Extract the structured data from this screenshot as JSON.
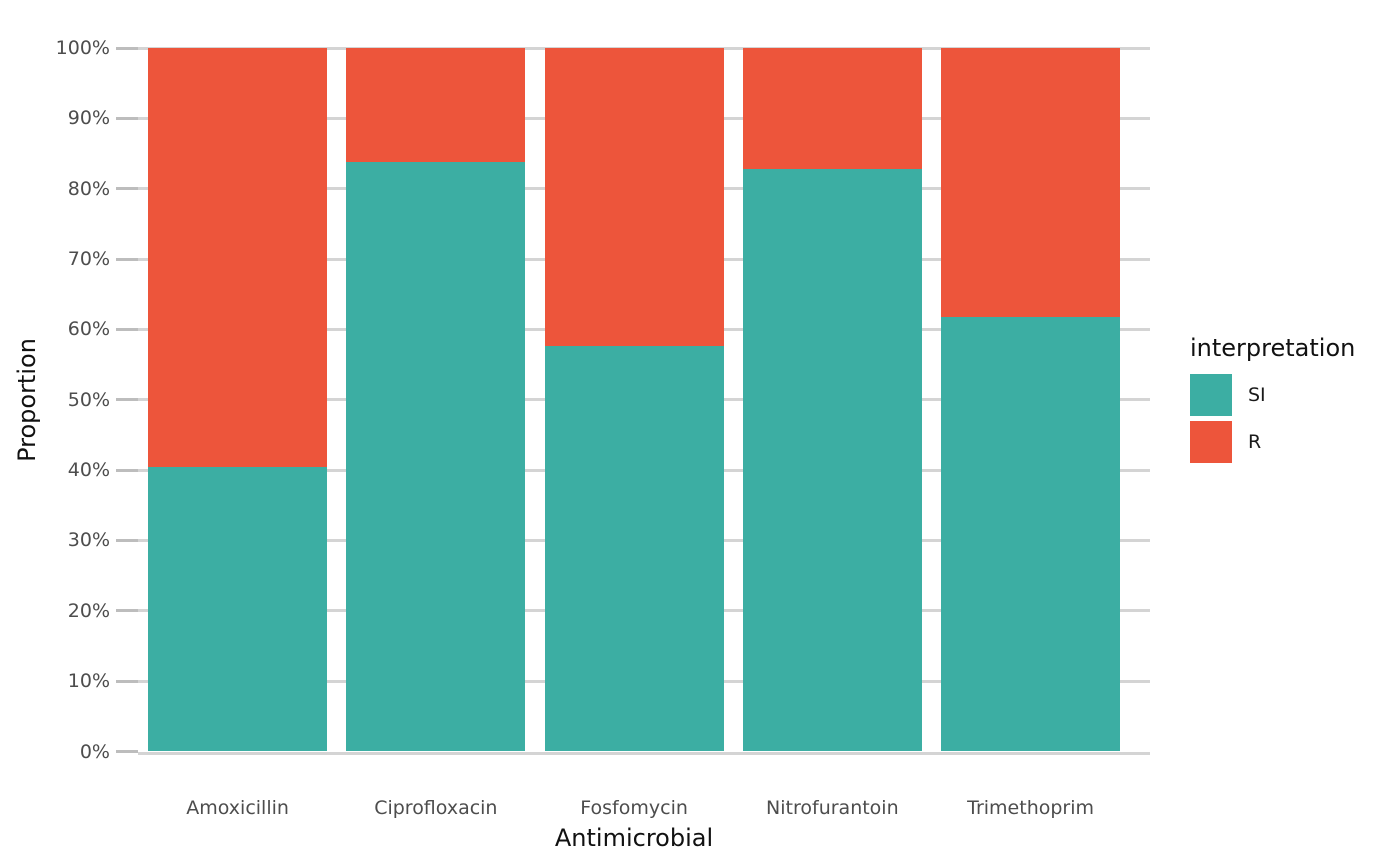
{
  "chart_data": {
    "type": "bar",
    "variant": "stacked-percent",
    "orientation": "vertical",
    "title": "",
    "xlabel": "Antimicrobial",
    "ylabel": "Proportion",
    "categories": [
      "Amoxicillin",
      "Ciprofloxacin",
      "Fosfomycin",
      "Nitrofurantoin",
      "Trimethoprim"
    ],
    "series": [
      {
        "name": "SI",
        "color": "#3caea3",
        "values": [
          40.4,
          83.8,
          57.7,
          82.8,
          61.8
        ]
      },
      {
        "name": "R",
        "color": "#ed553b",
        "values": [
          59.6,
          16.2,
          42.3,
          17.2,
          38.2
        ]
      }
    ],
    "y_axis": {
      "min": 0,
      "max": 100,
      "unit": "%",
      "tick_step": 10,
      "tick_labels": [
        "0%",
        "10%",
        "20%",
        "30%",
        "40%",
        "50%",
        "60%",
        "70%",
        "80%",
        "90%",
        "100%"
      ]
    },
    "legend": {
      "title": "interpretation",
      "position": "right",
      "items": [
        {
          "label": "SI",
          "color": "#3caea3"
        },
        {
          "label": "R",
          "color": "#ed553b"
        }
      ]
    },
    "grid": true,
    "gridline_color": "#d4d4d4",
    "tick_color": "#bdbdbd",
    "text_color": "#4d4d4d"
  }
}
